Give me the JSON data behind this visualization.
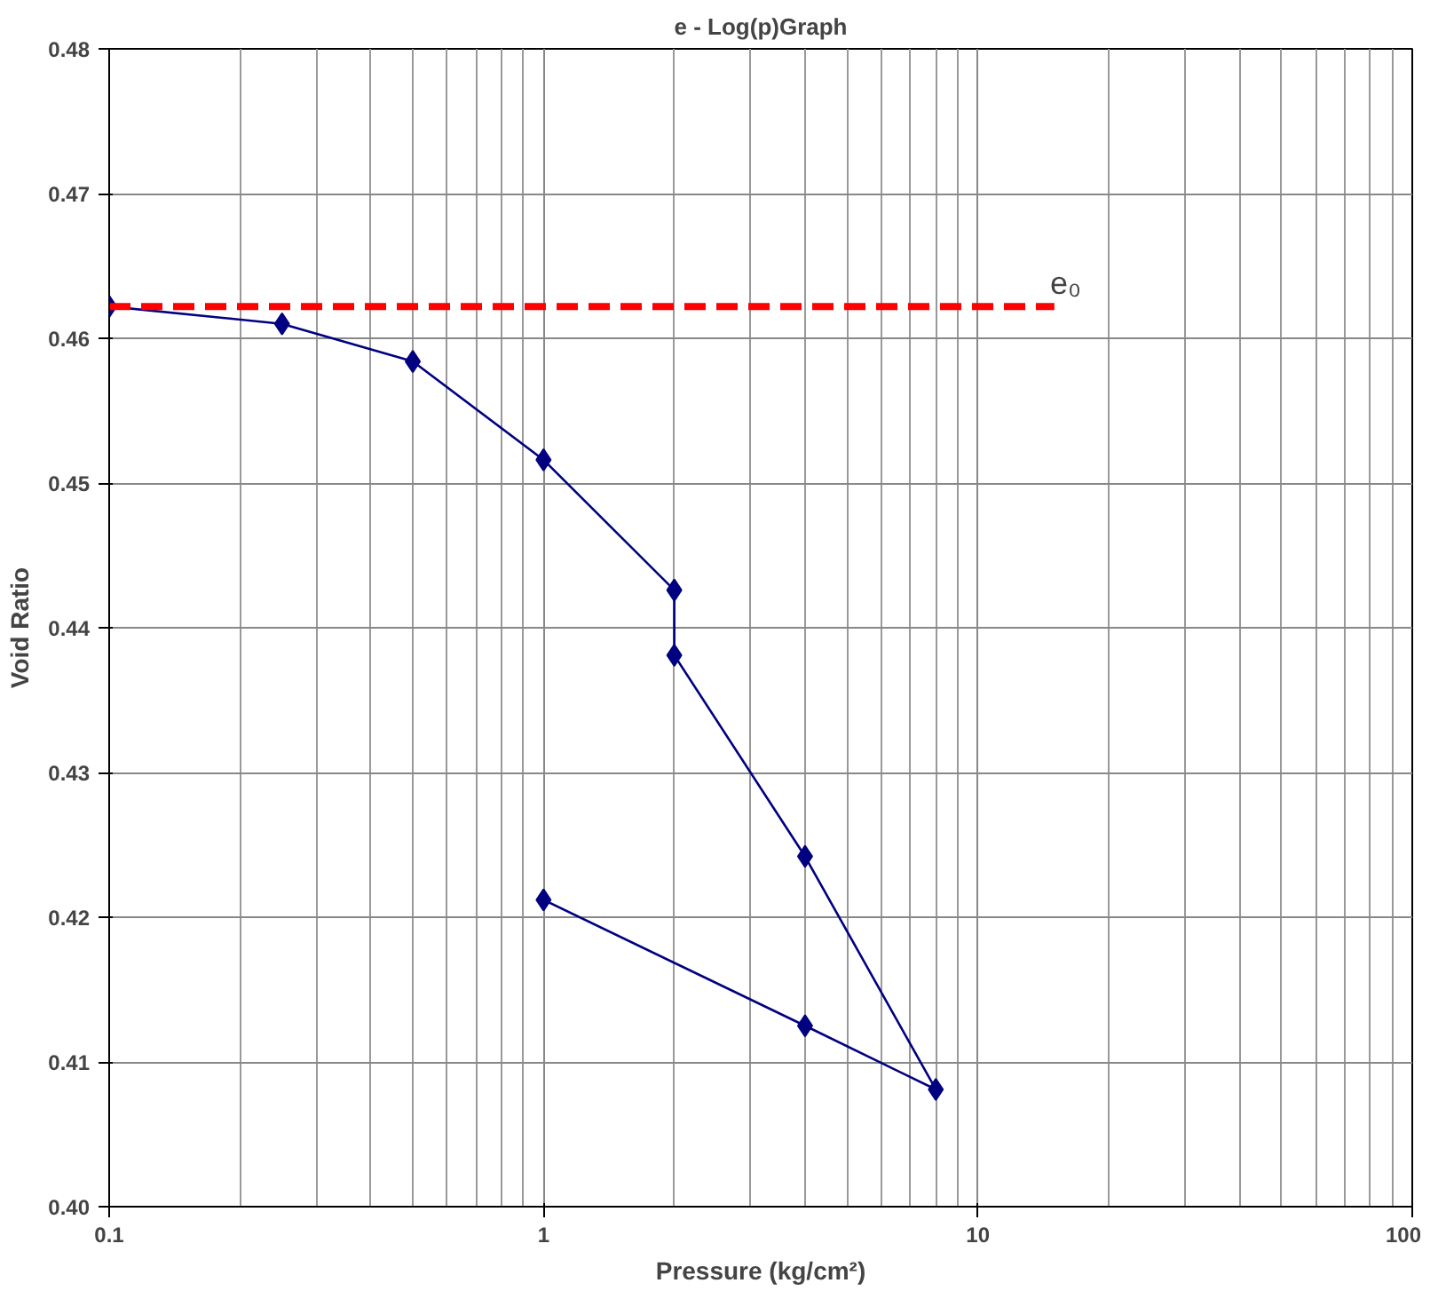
{
  "chart_data": {
    "type": "line",
    "title": "e - Log(p)Graph",
    "xlabel": "Pressure (kg/cm²)",
    "ylabel": "Void Ratio",
    "series": [
      {
        "color": "#000080",
        "marker": "diamond",
        "x": [
          0.1,
          0.25,
          0.5,
          1,
          2,
          2,
          4,
          8,
          4,
          1
        ],
        "values": [
          0.4622,
          0.461,
          0.4584,
          0.4516,
          0.4426,
          0.4381,
          0.4242,
          0.4081,
          0.4125,
          0.4212
        ]
      },
      {
        "color": "#ff0000",
        "marker": "none",
        "line_style": "dashed",
        "x": [
          0.1,
          15
        ],
        "values": [
          0.4622,
          0.4622
        ]
      }
    ],
    "annotations": [
      "e₀"
    ],
    "log": "x",
    "xlim": [
      0.1,
      100
    ],
    "ylim": [
      0.4,
      0.48
    ],
    "xticks": [
      0.1,
      1,
      10,
      100
    ],
    "yticks": [
      {
        "value": 0.4,
        "label": "0.40"
      },
      {
        "value": 0.41,
        "label": "0.41"
      },
      {
        "value": 0.42,
        "label": "0.42"
      },
      {
        "value": 0.43,
        "label": "0.43"
      },
      {
        "value": 0.44,
        "label": "0.44"
      },
      {
        "value": 0.45,
        "label": "0.45"
      },
      {
        "value": 0.46,
        "label": "0.46"
      },
      {
        "value": 0.47,
        "label": "0.47"
      },
      {
        "value": 0.48,
        "label": "0.48"
      }
    ],
    "grid": true
  }
}
